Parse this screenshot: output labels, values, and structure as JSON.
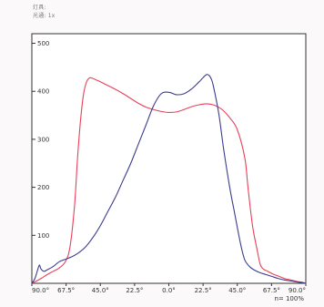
{
  "header": {
    "line1": "灯具:",
    "line2": "光通: 1x"
  },
  "colors": {
    "red_series": "#e8405a",
    "blue_series": "#3c3c8e",
    "axis": "#333333",
    "background": "#ffffff"
  },
  "chart_data": {
    "type": "line",
    "xlabel": "",
    "ylabel": "",
    "ylim": [
      0,
      520
    ],
    "xlim": [
      -90,
      90
    ],
    "yticks": [
      100,
      200,
      300,
      400,
      500
    ],
    "ytick_labels": [
      "100",
      "200",
      "300",
      "400",
      "500"
    ],
    "xticks": [
      -90,
      -67.5,
      -45,
      -22.5,
      0,
      22.5,
      45,
      67.5,
      90
    ],
    "xtick_labels": [
      "90.0°",
      "67.5°",
      "45.0°",
      "22.5°",
      "0.0°",
      "22.5°",
      "45.0°",
      "67.5°",
      "90.0°"
    ],
    "annotation": "n= 100%",
    "grid": false,
    "series": [
      {
        "color": "#e8405a",
        "x": [
          -90,
          -88,
          -84,
          -80,
          -76,
          -72,
          -68,
          -65,
          -62,
          -60,
          -58,
          -56,
          -54,
          -52,
          -50,
          -48,
          -45,
          -40,
          -35,
          -30,
          -25,
          -20,
          -15,
          -10,
          -5,
          0,
          5,
          10,
          15,
          20,
          25,
          30,
          35,
          40,
          45,
          50,
          52,
          55,
          58,
          60,
          62,
          65,
          68,
          72,
          76,
          80,
          84,
          88,
          90
        ],
        "y": [
          0,
          3,
          10,
          18,
          25,
          32,
          45,
          75,
          160,
          260,
          340,
          395,
          420,
          428,
          427,
          424,
          420,
          412,
          404,
          395,
          385,
          375,
          367,
          362,
          358,
          356,
          357,
          362,
          368,
          372,
          374,
          371,
          362,
          345,
          320,
          260,
          200,
          120,
          70,
          40,
          30,
          25,
          20,
          15,
          10,
          7,
          4,
          2,
          0
        ]
      },
      {
        "color": "#3c3c8e",
        "x": [
          -90,
          -88,
          -86,
          -85,
          -84,
          -82,
          -80,
          -76,
          -72,
          -68,
          -64,
          -60,
          -55,
          -50,
          -45,
          -40,
          -35,
          -30,
          -25,
          -20,
          -15,
          -10,
          -5,
          0,
          5,
          10,
          15,
          20,
          25,
          28,
          30,
          33,
          36,
          40,
          43,
          46,
          48,
          50,
          53,
          56,
          60,
          64,
          68,
          72,
          76,
          80,
          84,
          88,
          90
        ],
        "y": [
          0,
          10,
          30,
          38,
          30,
          25,
          28,
          35,
          45,
          50,
          55,
          62,
          75,
          95,
          120,
          150,
          180,
          215,
          250,
          290,
          330,
          370,
          395,
          398,
          393,
          395,
          405,
          420,
          435,
          425,
          400,
          350,
          280,
          200,
          150,
          100,
          70,
          48,
          35,
          28,
          22,
          18,
          14,
          10,
          7,
          5,
          3,
          1,
          0
        ]
      }
    ]
  }
}
